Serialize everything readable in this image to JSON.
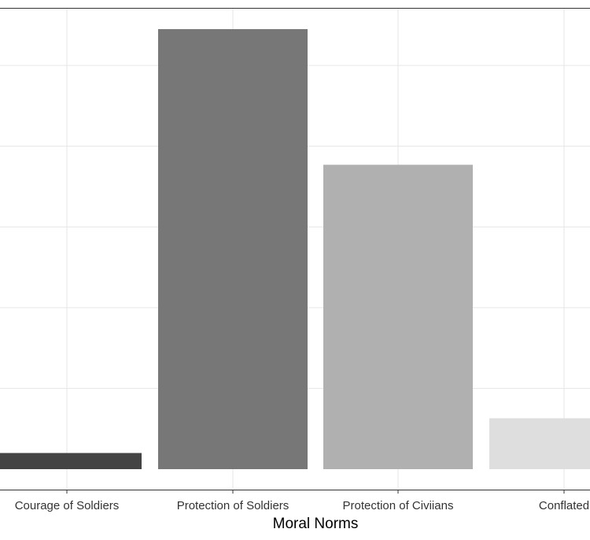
{
  "chart_data": {
    "type": "bar",
    "categories": [
      "Courage of Soldiers",
      "Protection of Soldiers",
      "Protection of Civiians",
      "Conflated"
    ],
    "values": [
      2,
      54.5,
      37.7,
      6.3
    ],
    "colors": [
      "#444444",
      "#777777",
      "#b0b0b0",
      "#dedede"
    ],
    "xlabel": "Moral Norms",
    "ylabel": "",
    "ylim": [
      0,
      57.2
    ],
    "y_gridlines": [
      10,
      20,
      30,
      40,
      50
    ],
    "grid": true,
    "legend": "none"
  }
}
